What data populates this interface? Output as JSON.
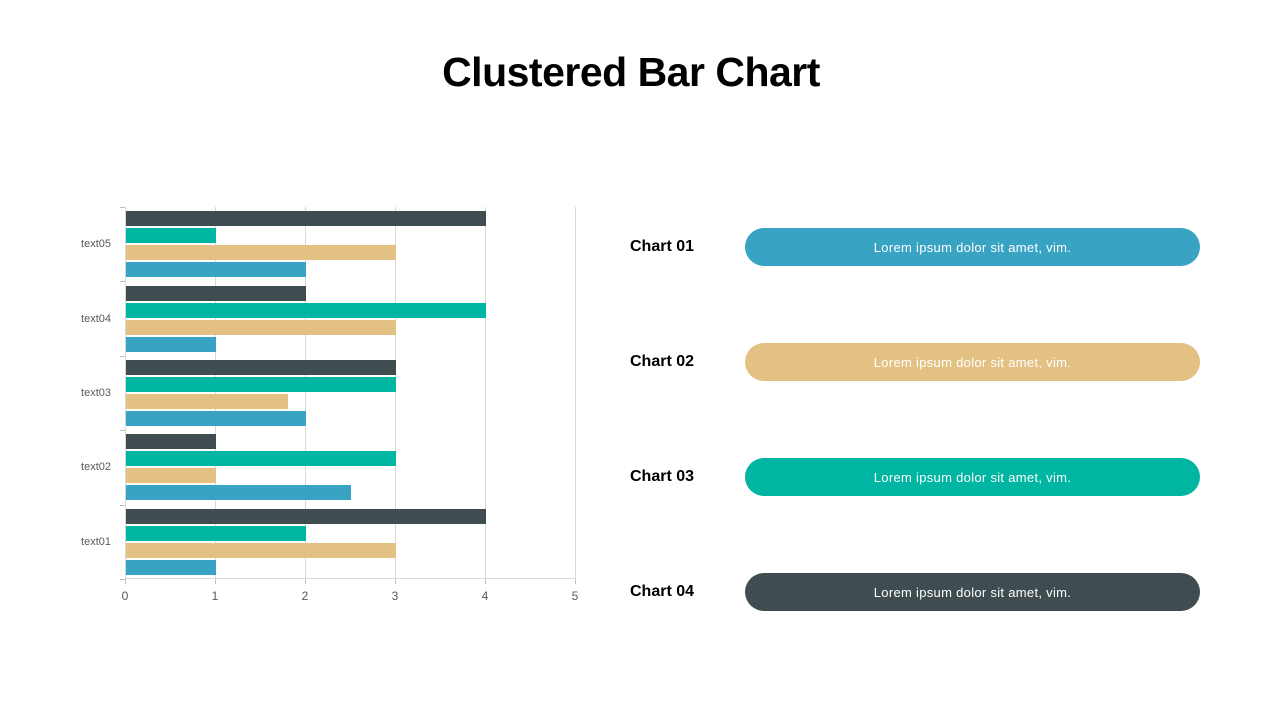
{
  "title": "Clustered Bar Chart",
  "colors": {
    "chart01_blue": "#39A3C4",
    "chart02_tan": "#E3C183",
    "chart03_teal": "#00B5A1",
    "chart04_dark": "#3F4D50",
    "gridline": "#D9D9D9",
    "tick": "#BFBFBF",
    "axis_text": "#595959",
    "title_text": "#000000"
  },
  "chart_data": {
    "type": "bar",
    "orientation": "horizontal",
    "title": "",
    "xlabel": "",
    "ylabel": "",
    "categories": [
      "text01",
      "text02",
      "text03",
      "text04",
      "text05"
    ],
    "category_display_order": "top_to_bottom_reversed",
    "series": [
      {
        "name": "Chart 01",
        "color": "#39A3C4",
        "values": [
          1,
          2.5,
          2,
          1,
          2
        ]
      },
      {
        "name": "Chart 02",
        "color": "#E3C183",
        "values": [
          3,
          1,
          1.8,
          3,
          3
        ]
      },
      {
        "name": "Chart 03",
        "color": "#00B5A1",
        "values": [
          2,
          3,
          3,
          4,
          1
        ]
      },
      {
        "name": "Chart 04",
        "color": "#3F4D50",
        "values": [
          4,
          1,
          3,
          2,
          4
        ]
      }
    ],
    "bar_order_within_group_top_to_bottom": [
      "Chart 04",
      "Chart 03",
      "Chart 02",
      "Chart 01"
    ],
    "xlim": [
      0,
      5
    ],
    "xticks": [
      "0",
      "1",
      "2",
      "3",
      "4",
      "5"
    ],
    "grid": true,
    "legend_position": "right-panel"
  },
  "legend": {
    "items": [
      {
        "label": "Chart 01",
        "text": "Lorem ipsum dolor sit amet, vim.",
        "color": "#39A3C4"
      },
      {
        "label": "Chart 02",
        "text": "Lorem ipsum dolor sit amet, vim.",
        "color": "#E3C183"
      },
      {
        "label": "Chart 03",
        "text": "Lorem ipsum dolor sit amet, vim.",
        "color": "#00B5A1"
      },
      {
        "label": "Chart 04",
        "text": "Lorem ipsum dolor sit amet, vim.",
        "color": "#3F4D50"
      }
    ]
  }
}
